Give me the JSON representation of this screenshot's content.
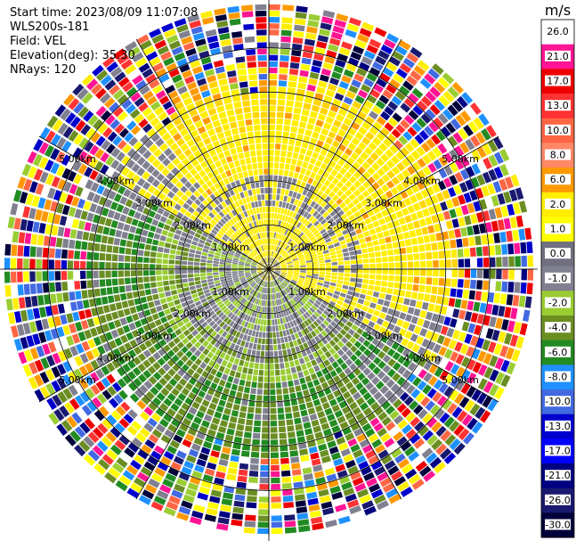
{
  "header": {
    "start_time": "Start time: 2023/08/09 11:07:08",
    "instrument": "WLS200s-181",
    "field": "Field: VEL",
    "elevation": "Elevation(deg): 35.30",
    "nrays": "NRays: 120"
  },
  "chart_data": {
    "type": "heatmap",
    "projection": "polar-ppi",
    "field": "VEL",
    "units": "m/s",
    "n_rays": 120,
    "max_range_km": 6.0,
    "range_rings_km": [
      1,
      2,
      3,
      4,
      5
    ],
    "range_ring_labels": [
      "1.00km",
      "2.00km",
      "3.00km",
      "4.00km",
      "5.00km"
    ],
    "colorbar": {
      "label": "m/s",
      "ticks": [
        "26.0",
        "21.0",
        "17.0",
        "13.0",
        "10.0",
        "8.0",
        "6.0",
        "2.0",
        "1.0",
        "0.0",
        "-1.0",
        "-2.0",
        "-4.0",
        "-6.0",
        "-8.0",
        "-10.0",
        "-13.0",
        "-17.0",
        "-21.0",
        "-26.0",
        "-30.0"
      ],
      "colors": [
        "#ffffff",
        "#ff1493",
        "#ee0000",
        "#ff3333",
        "#ff6644",
        "#ff8866",
        "#ff9900",
        "#ffee00",
        "#ffff00",
        "#707080",
        "#808090",
        "#9acd32",
        "#6b8e23",
        "#228b22",
        "#1e90ff",
        "#4169e1",
        "#0000cd",
        "#0000ff",
        "#000080",
        "#191970",
        "#00003a"
      ]
    },
    "velocity_pattern": {
      "inner_km": 1.5,
      "outer_km": 4.3,
      "positive_sector_deg": [
        -60,
        120
      ],
      "positive_color": "#ffee00",
      "negative_colors": [
        "#9acd32",
        "#6b8e23"
      ],
      "zero_color": "#808090"
    }
  }
}
